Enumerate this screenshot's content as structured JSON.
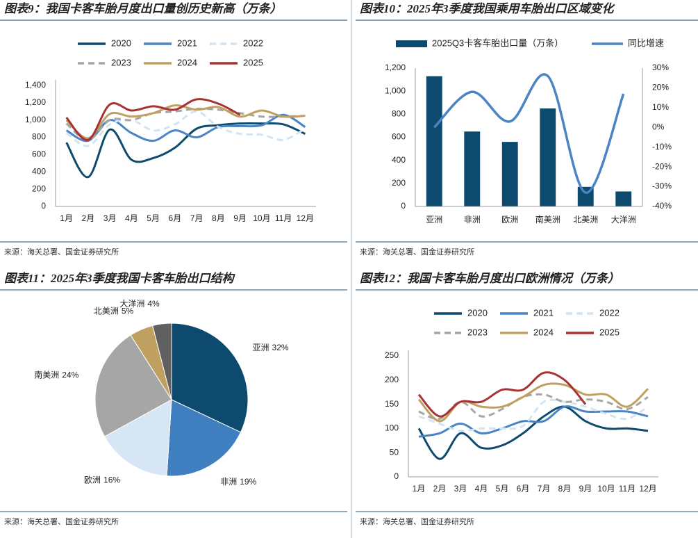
{
  "chart_data": [
    {
      "type": "line",
      "title": "图表9：我国卡客车胎月度出口量创历史新高（万条）",
      "source": "来源：海关总署、国金证券研究所",
      "categories": [
        "1月",
        "2月",
        "3月",
        "4月",
        "5月",
        "6月",
        "7月",
        "8月",
        "9月",
        "10月",
        "11月",
        "12月"
      ],
      "ylim": [
        0,
        1400
      ],
      "yticks": [
        0,
        200,
        400,
        600,
        800,
        {
          "value": 1000,
          "label": "1,000"
        },
        {
          "value": 1200,
          "label": "1,200"
        },
        {
          "value": 1400,
          "label": "1,400"
        }
      ],
      "series": [
        {
          "name": "2020",
          "color": "#0d4a6e",
          "dashed": false,
          "values": [
            740,
            340,
            890,
            540,
            560,
            680,
            900,
            940,
            960,
            960,
            950,
            840
          ]
        },
        {
          "name": "2021",
          "color": "#4a84c4",
          "dashed": false,
          "values": [
            880,
            760,
            1000,
            850,
            760,
            880,
            800,
            920,
            930,
            940,
            1060,
            920
          ]
        },
        {
          "name": "2022",
          "color": "#d2e4f4",
          "dashed": true,
          "values": [
            850,
            700,
            950,
            1000,
            880,
            950,
            1100,
            920,
            840,
            830,
            770,
            900
          ]
        },
        {
          "name": "2023",
          "color": "#a6a6a6",
          "dashed": true,
          "values": [
            960,
            770,
            1000,
            1000,
            1080,
            1100,
            1130,
            1120,
            1080,
            1040,
            1040,
            1050
          ]
        },
        {
          "name": "2024",
          "color": "#c0a060",
          "dashed": false,
          "values": [
            1000,
            790,
            1070,
            1040,
            1080,
            1170,
            1120,
            1150,
            1040,
            1110,
            1040,
            1050
          ]
        },
        {
          "name": "2025",
          "color": "#a83232",
          "dashed": false,
          "values": [
            1030,
            770,
            1180,
            1110,
            1160,
            1120,
            1240,
            1190,
            1060,
            null,
            null,
            null
          ]
        }
      ]
    },
    {
      "type": "bar-line",
      "title": "图表10：2025年3季度我国乘用车胎出口区域变化",
      "source": "来源：海关总署、国金证券研究所",
      "categories": [
        "亚洲",
        "非洲",
        "欧洲",
        "南美洲",
        "北美洲",
        "大洋洲"
      ],
      "ylim": [
        0,
        1200
      ],
      "yticks": [
        0,
        200,
        400,
        600,
        800,
        {
          "value": 1000,
          "label": "1,000"
        },
        {
          "value": 1200,
          "label": "1,200"
        }
      ],
      "y2lim": [
        -40,
        30
      ],
      "y2ticks": [
        {
          "value": -40,
          "label": "-40%"
        },
        {
          "value": -30,
          "label": "-30%"
        },
        {
          "value": -20,
          "label": "-20%"
        },
        {
          "value": -10,
          "label": "-10%"
        },
        {
          "value": 0,
          "label": "0%"
        },
        {
          "value": 10,
          "label": "10%"
        },
        {
          "value": 20,
          "label": "20%"
        },
        {
          "value": 30,
          "label": "30%"
        }
      ],
      "series": [
        {
          "name": "2025Q3卡客车胎出口量（万条）",
          "color": "#0d4a6e",
          "values": [
            1130,
            650,
            560,
            850,
            170,
            130
          ]
        },
        {
          "name": "同比增速",
          "color": "#4a84c4",
          "axis": "y2",
          "values": [
            0,
            18,
            3,
            26,
            -33,
            17
          ]
        }
      ]
    },
    {
      "type": "pie",
      "title": "图表11：2025年3季度我国卡客车胎出口结构",
      "source": "来源：海关总署、国金证券研究所",
      "categories": [
        "亚洲",
        "非洲",
        "欧洲",
        "南美洲",
        "北美洲",
        "大洋洲"
      ],
      "values": [
        32,
        19,
        16,
        24,
        5,
        4
      ],
      "value_labels": [
        "32%",
        "19%",
        "16%",
        "24%",
        "5%",
        "4%"
      ],
      "colors": [
        "#0d4a6e",
        "#3f7fbf",
        "#d6e6f5",
        "#a6a6a6",
        "#c0a060",
        "#606060"
      ]
    },
    {
      "type": "line",
      "title": "图表12：我国卡客车胎月度出口欧洲情况（万条）",
      "source": "来源：海关总署、国金证券研究所",
      "categories": [
        "1月",
        "2月",
        "3月",
        "4月",
        "5月",
        "6月",
        "7月",
        "8月",
        "9月",
        "10月",
        "11月",
        "12月"
      ],
      "ylim": [
        0,
        250
      ],
      "yticks": [
        0,
        50,
        100,
        150,
        200,
        250
      ],
      "series": [
        {
          "name": "2020",
          "color": "#0d4a6e",
          "dashed": false,
          "values": [
            100,
            37,
            90,
            60,
            65,
            90,
            125,
            145,
            115,
            100,
            100,
            95
          ]
        },
        {
          "name": "2021",
          "color": "#4a84c4",
          "dashed": false,
          "values": [
            83,
            90,
            110,
            90,
            100,
            115,
            115,
            145,
            135,
            135,
            135,
            125
          ]
        },
        {
          "name": "2022",
          "color": "#d2e4f4",
          "dashed": true,
          "values": [
            125,
            110,
            95,
            100,
            100,
            105,
            155,
            155,
            145,
            130,
            120,
            145
          ]
        },
        {
          "name": "2023",
          "color": "#a6a6a6",
          "dashed": true,
          "values": [
            135,
            120,
            155,
            125,
            140,
            165,
            170,
            155,
            160,
            155,
            140,
            165
          ]
        },
        {
          "name": "2024",
          "color": "#c0a060",
          "dashed": false,
          "values": [
            160,
            115,
            155,
            145,
            145,
            165,
            190,
            190,
            170,
            170,
            145,
            182
          ]
        },
        {
          "name": "2025",
          "color": "#a83232",
          "dashed": false,
          "values": [
            170,
            125,
            155,
            155,
            180,
            180,
            215,
            200,
            150,
            null,
            null,
            null
          ]
        }
      ]
    }
  ]
}
